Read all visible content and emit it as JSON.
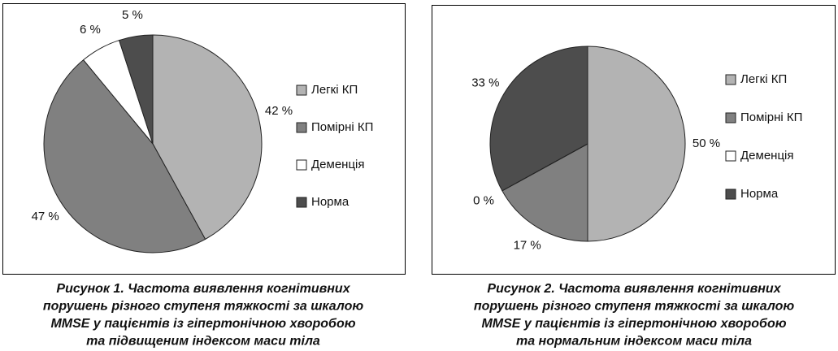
{
  "chart_data": [
    {
      "type": "pie",
      "categories": [
        "Легкі КП",
        "Помірні КП",
        "Деменція",
        "Норма"
      ],
      "values": [
        42,
        47,
        6,
        5
      ],
      "value_labels": [
        "42 %",
        "47 %",
        "6 %",
        "5 %"
      ],
      "colors": [
        "#b3b3b3",
        "#808080",
        "#ffffff",
        "#4d4d4d"
      ],
      "caption": [
        "Рисунок 1. Частота виявлення когнітивних",
        "порушень різного ступеня тяжкості за шкалою",
        "MMSE у пацієнтів із гіпертонічною хворобою",
        "та підвищеним індексом маси тіла"
      ]
    },
    {
      "type": "pie",
      "categories": [
        "Легкі КП",
        "Помірні КП",
        "Деменція",
        "Норма"
      ],
      "values": [
        50,
        17,
        0,
        33
      ],
      "value_labels": [
        "50 %",
        "17 %",
        "0 %",
        "33 %"
      ],
      "colors": [
        "#b3b3b3",
        "#808080",
        "#ffffff",
        "#4d4d4d"
      ],
      "caption": [
        "Рисунок 2. Частота виявлення когнітивних",
        "порушень різного ступеня тяжкості за шкалою",
        "MMSE у пацієнтів із гіпертонічною хворобою",
        "та нормальним індексом маси тіла"
      ]
    }
  ]
}
